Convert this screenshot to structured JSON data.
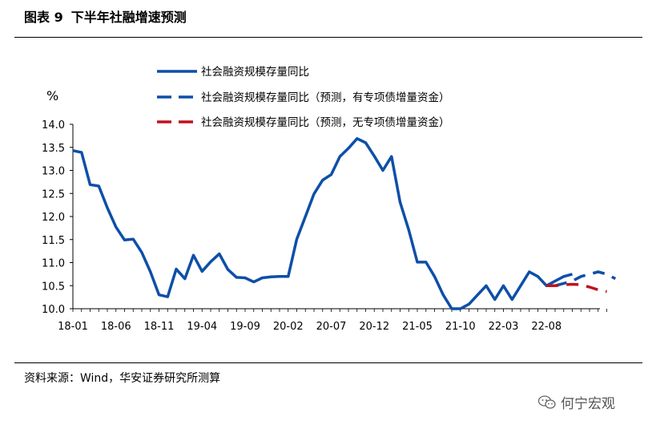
{
  "header": {
    "figure_label": "图表 9",
    "title": "下半年社融增速预测"
  },
  "footer": {
    "source": "资料来源：Wind，华安证券研究所测算",
    "watermark": "何宁宏观",
    "watermark_icon": "wechat-icon"
  },
  "colors": {
    "actual": "#0d4fa8",
    "forecast_a": "#0d4fa8",
    "forecast_b": "#c0111d"
  },
  "chart_data": {
    "type": "line",
    "title": "下半年社融增速预测",
    "unit_label": "%",
    "ylim": [
      10.0,
      14.0
    ],
    "yticks": [
      "14.0",
      "13.5",
      "13.0",
      "12.5",
      "12.0",
      "11.5",
      "11.0",
      "10.5",
      "10.0"
    ],
    "xticks": [
      "18-01",
      "18-06",
      "18-11",
      "19-04",
      "19-09",
      "20-02",
      "20-07",
      "20-12",
      "21-05",
      "21-10",
      "22-03",
      "22-08"
    ],
    "series": [
      {
        "name": "社会融资规模存量同比",
        "style": "solid",
        "x_start_index": 0,
        "values": [
          13.43,
          13.39,
          12.69,
          12.66,
          12.19,
          11.77,
          11.49,
          11.51,
          11.22,
          10.8,
          10.3,
          10.26,
          10.86,
          10.65,
          11.16,
          10.81,
          11.02,
          11.19,
          10.85,
          10.68,
          10.67,
          10.58,
          10.67,
          10.69,
          10.7,
          10.7,
          11.51,
          12.0,
          12.49,
          12.79,
          12.91,
          13.3,
          13.48,
          13.69,
          13.6,
          13.31,
          13.0,
          13.3,
          12.31,
          11.71,
          11.01,
          11.01,
          10.7,
          10.3,
          10.0,
          10.0,
          10.1,
          10.3,
          10.5,
          10.2,
          10.5,
          10.2,
          10.5,
          10.8,
          10.7,
          10.5,
          10.6,
          10.7,
          10.75
        ]
      },
      {
        "name": "社会融资规模存量同比（预测，有专项债增量资金）",
        "style": "dashed",
        "x_start_index": 56,
        "values": [
          10.5,
          10.55,
          10.6,
          10.7,
          10.75,
          10.8,
          10.75,
          10.65
        ]
      },
      {
        "name": "社会融资规模存量同比（预测，无专项债增量资金）",
        "style": "dashed",
        "x_start_index": 55,
        "values": [
          10.5,
          10.5,
          10.52,
          10.53,
          10.52,
          10.47,
          10.41,
          10.37
        ]
      }
    ]
  }
}
